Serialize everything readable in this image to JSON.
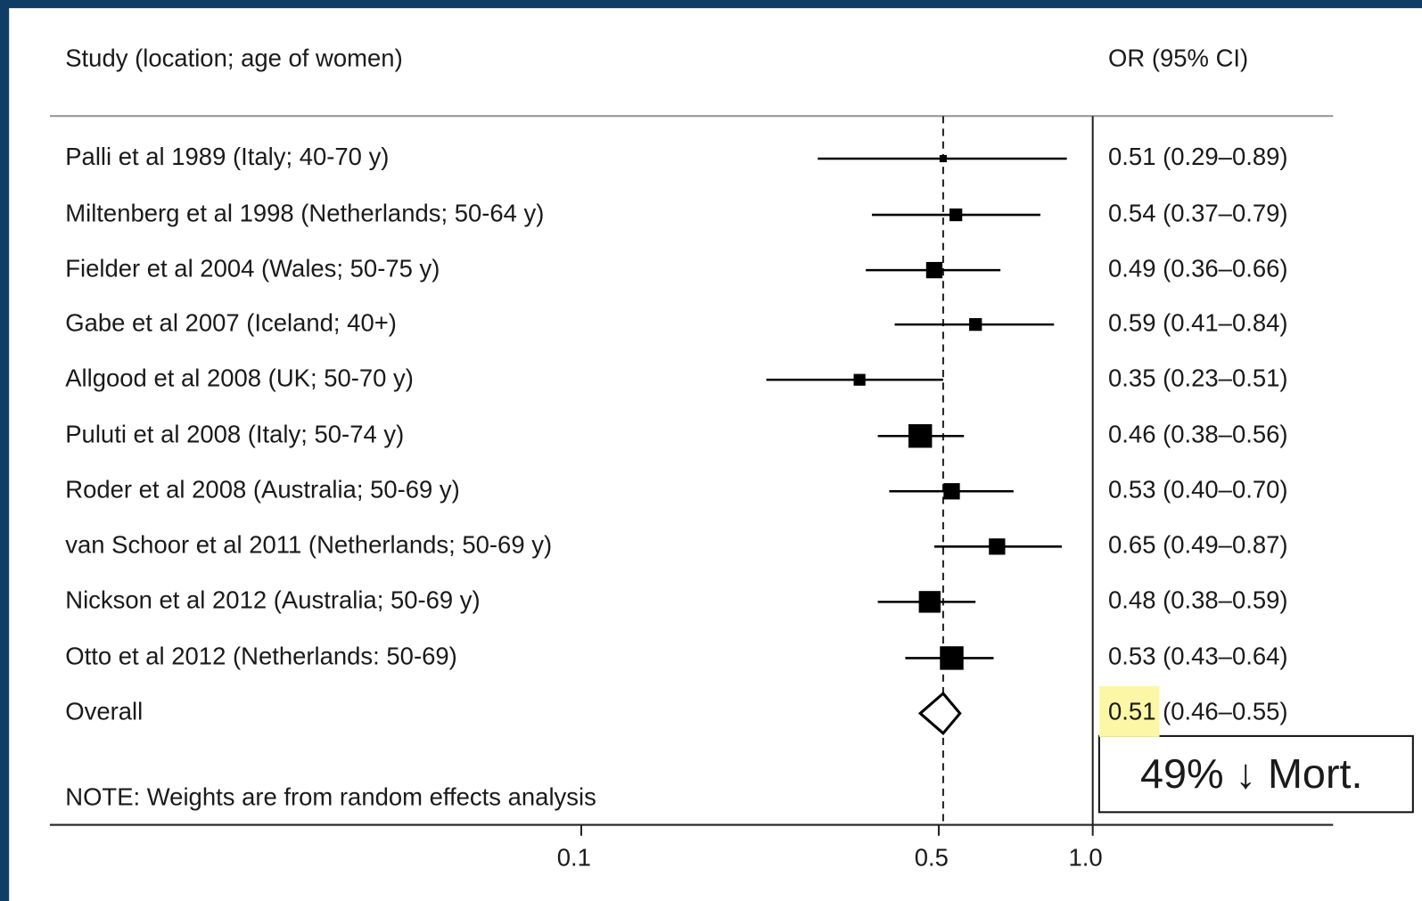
{
  "chart_data": {
    "type": "forest",
    "column_headers": [
      "Study (location; age of women)",
      "OR (95% CI)"
    ],
    "categories": [
      "Palli et al 1989 (Italy; 40-70 y)",
      "Miltenberg et al 1998 (Netherlands; 50-64 y)",
      "Fielder et al 2004 (Wales; 50-75 y)",
      "Gabe et al 2007 (Iceland; 40+)",
      "Allgood et al 2008 (UK; 50-70 y)",
      "Puluti et al 2008 (Italy; 50-74 y)",
      "Roder et al 2008 (Australia; 50-69 y)",
      "van Schoor et al 2011 (Netherlands; 50-69 y)",
      "Nickson et al 2012 (Australia; 50-69 y)",
      "Otto et al 2012 (Netherlands: 50-69)"
    ],
    "values": [
      0.51,
      0.54,
      0.49,
      0.59,
      0.35,
      0.46,
      0.53,
      0.65,
      0.48,
      0.53
    ],
    "lower": [
      0.29,
      0.37,
      0.36,
      0.41,
      0.23,
      0.38,
      0.4,
      0.49,
      0.38,
      0.43
    ],
    "upper": [
      0.89,
      0.79,
      0.66,
      0.84,
      0.51,
      0.56,
      0.7,
      0.87,
      0.59,
      0.64
    ],
    "value_labels": [
      "0.51 (0.29–0.89)",
      "0.54 (0.37–0.79)",
      "0.49 (0.36–0.66)",
      "0.59 (0.41–0.84)",
      "0.35 (0.23–0.51)",
      "0.46 (0.38–0.56)",
      "0.53 (0.40–0.70)",
      "0.65 (0.49–0.87)",
      "0.48 (0.38–0.59)",
      "0.53 (0.43–0.64)"
    ],
    "weights": [
      1.8,
      5.6,
      9.2,
      5.6,
      4.8,
      19.2,
      9.2,
      9.2,
      16.3,
      19.2
    ],
    "overall": {
      "label": "Overall",
      "value": 0.51,
      "lower": 0.46,
      "upper": 0.55,
      "value_label": "0.51 (0.46–0.55)"
    },
    "highlight_color": "#fbf7a6",
    "note": "NOTE: Weights are from random effects analysis",
    "annotation": "49% ↓ Mort.",
    "log_x": true,
    "xlim": [
      0.01,
      3
    ],
    "xticks": [
      0.1,
      0.5,
      {
        "value": 1,
        "label": "1.0"
      }
    ],
    "color": "#000000"
  }
}
